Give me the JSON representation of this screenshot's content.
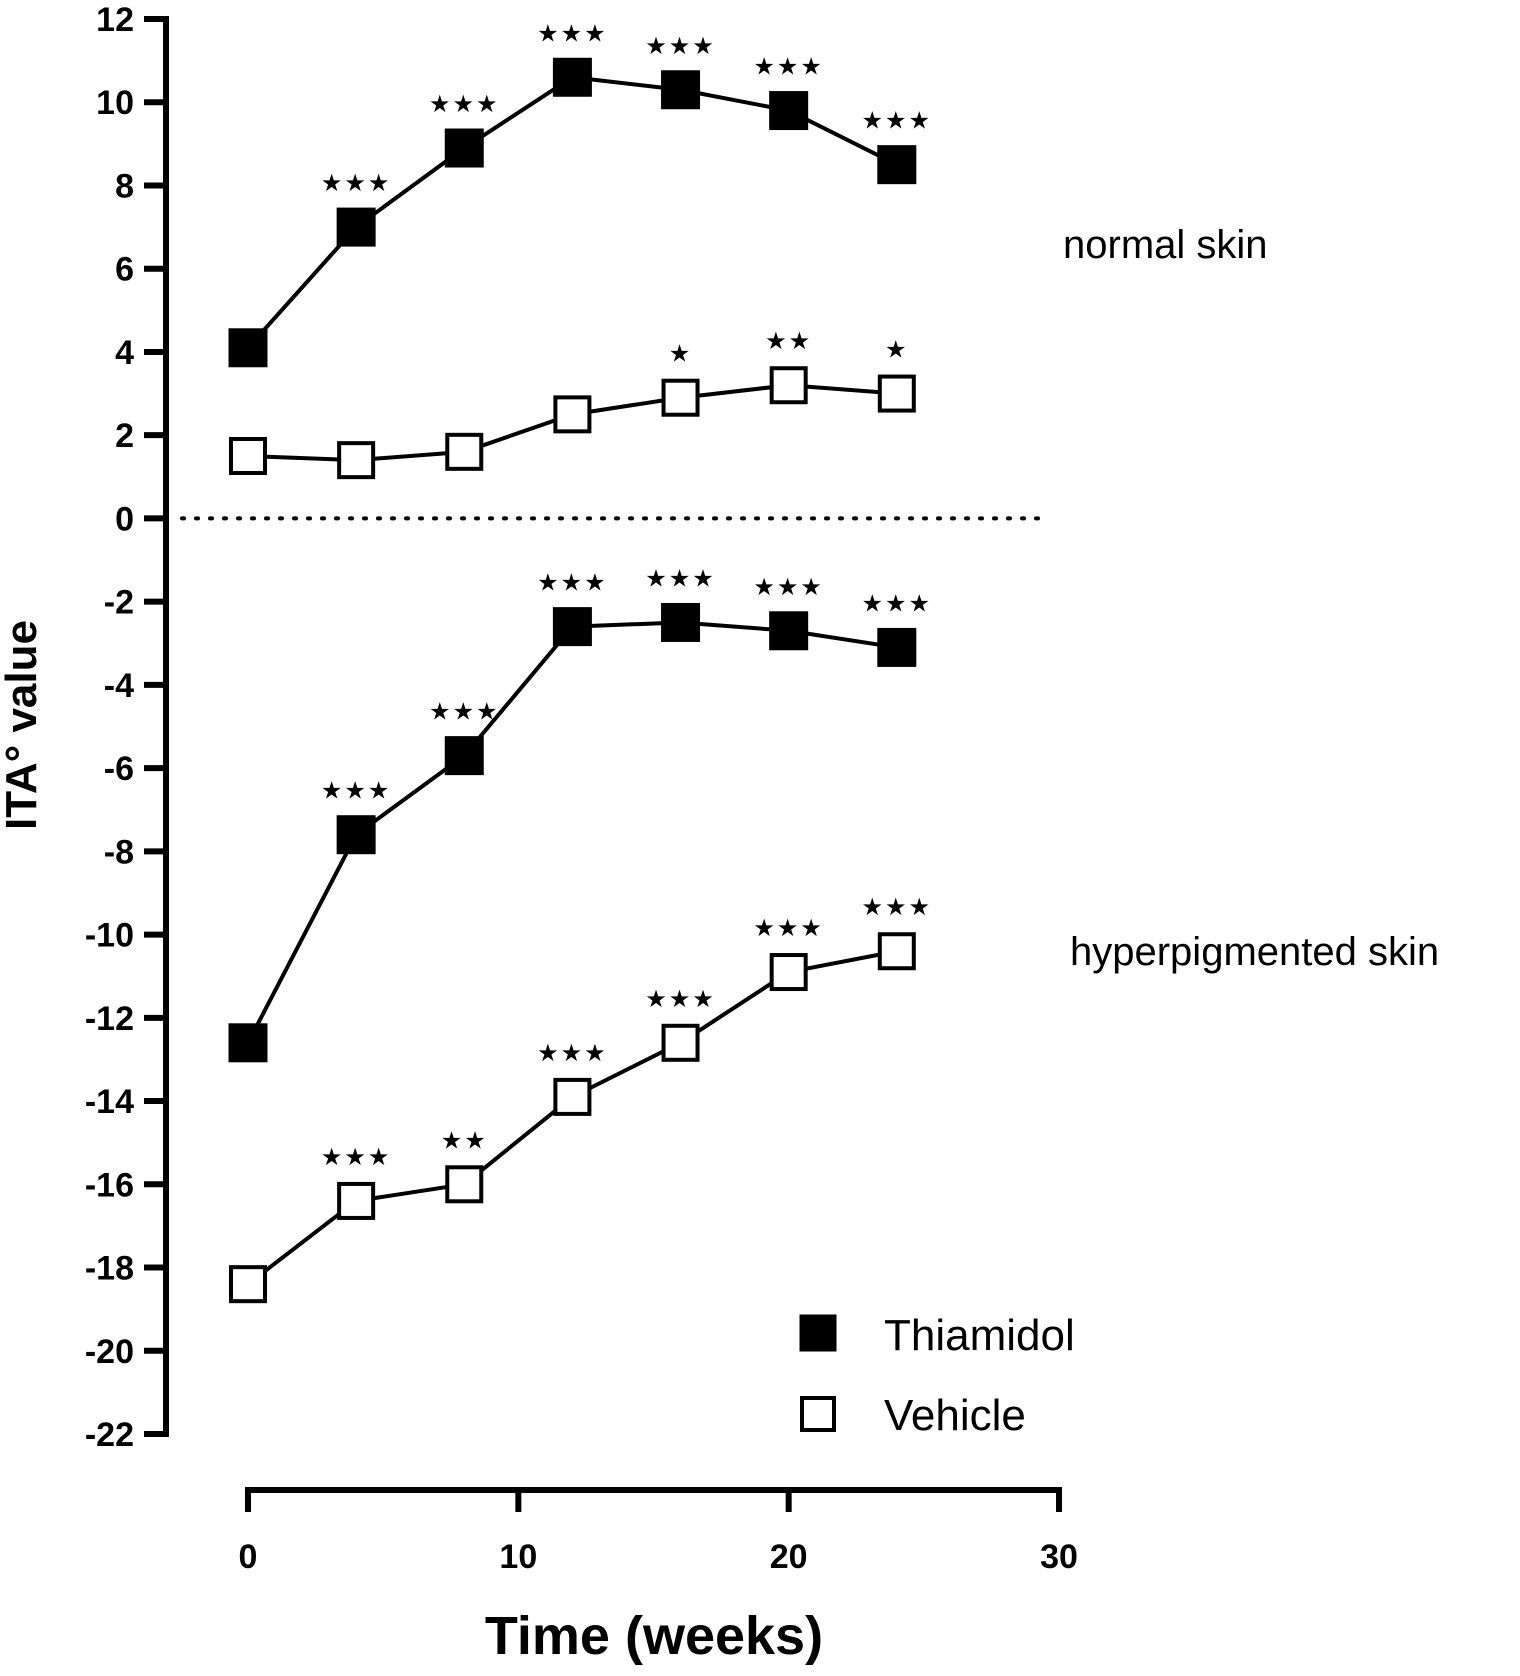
{
  "chart_data": {
    "type": "line",
    "xlabel": "Time (weeks)",
    "ylabel": "ITA° value",
    "xlim": [
      0,
      30
    ],
    "ylim": [
      -22,
      12
    ],
    "xticks": [
      0,
      10,
      20,
      30
    ],
    "yticks": [
      12,
      10,
      8,
      6,
      4,
      2,
      0,
      -2,
      -4,
      -6,
      -8,
      -10,
      -12,
      -14,
      -16,
      -18,
      -20,
      -22
    ],
    "reference_line": {
      "y": 0,
      "style": "dotted"
    },
    "legend": {
      "placement": "bottom-right",
      "entries": [
        {
          "label": "Thiamidol",
          "marker": "filled-square"
        },
        {
          "label": "Vehicle",
          "marker": "open-square"
        }
      ]
    },
    "annotations": [
      {
        "text": "normal skin",
        "near_y": 6.5
      },
      {
        "text": "hyperpigmented skin",
        "near_y": -10.5
      }
    ],
    "series": [
      {
        "group": "normal skin",
        "marker": "filled-square",
        "x": [
          0,
          4,
          8,
          12,
          16,
          20,
          24
        ],
        "y": [
          4.1,
          7.0,
          8.9,
          10.6,
          10.3,
          9.8,
          8.5
        ],
        "significance": [
          "",
          "***",
          "***",
          "***",
          "***",
          "***",
          "***"
        ]
      },
      {
        "group": "normal skin",
        "marker": "open-square",
        "x": [
          0,
          4,
          8,
          12,
          16,
          20,
          24
        ],
        "y": [
          1.5,
          1.4,
          1.6,
          2.5,
          2.9,
          3.2,
          3.0
        ],
        "significance": [
          "",
          "",
          "",
          "",
          "*",
          "**",
          "*"
        ]
      },
      {
        "group": "hyperpigmented skin",
        "marker": "filled-square",
        "x": [
          0,
          4,
          8,
          12,
          16,
          20,
          24
        ],
        "y": [
          -12.6,
          -7.6,
          -5.7,
          -2.6,
          -2.5,
          -2.7,
          -3.1
        ],
        "significance": [
          "",
          "***",
          "***",
          "***",
          "***",
          "***",
          "***"
        ]
      },
      {
        "group": "hyperpigmented skin",
        "marker": "open-square",
        "x": [
          0,
          4,
          8,
          12,
          16,
          20,
          24
        ],
        "y": [
          -18.4,
          -16.4,
          -16.0,
          -13.9,
          -12.6,
          -10.9,
          -10.4
        ],
        "significance": [
          "",
          "***",
          "**",
          "***",
          "***",
          "***",
          "***"
        ]
      }
    ]
  }
}
